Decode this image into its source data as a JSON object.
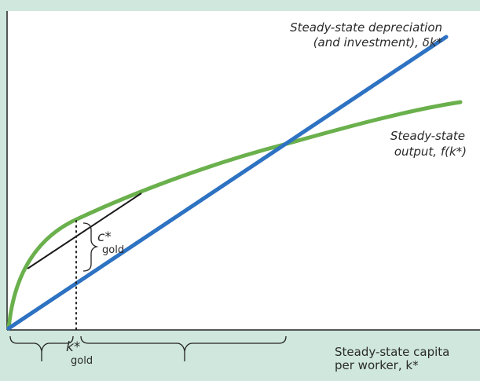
{
  "colors": {
    "background": "#cfe7dd",
    "plot_area": "#ffffff",
    "output_curve": "#6ab04c",
    "depreciation_line": "#2e72c2",
    "tangent_line": "#1a1a1a",
    "text": "#2b2b2b"
  },
  "labels": {
    "depreciation_line1": "Steady-state depreciation",
    "depreciation_line2": "(and investment), δk*",
    "output_line1": "Steady-state",
    "output_line2": "output, f(k*)",
    "c_gold_main": "c*",
    "c_gold_sub": "gold",
    "k_gold_main": "k*",
    "k_gold_sub": "gold",
    "x_axis_line1": "Steady-state capita",
    "x_axis_line2": "per worker, k*"
  }
}
